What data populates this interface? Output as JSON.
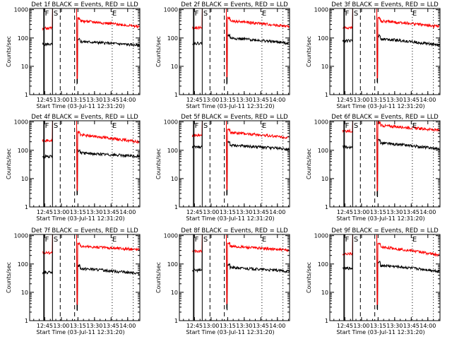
{
  "colors": {
    "events": "#000000",
    "lld": "#ff0000",
    "axes": "#000000",
    "background": "#ffffff"
  },
  "shared": {
    "xlabel": "Start Time (03-Jul-11 12:31:20)",
    "ylabel": "Counts/sec",
    "xticks": [
      "12:45",
      "13:00",
      "13:15",
      "13:30",
      "13:45",
      "14:00"
    ],
    "yticks": [
      "1",
      "10",
      "100",
      "1000"
    ],
    "markers": [
      "F",
      "S",
      "E"
    ]
  },
  "chart_data": [
    {
      "type": "line",
      "title": "Det 1f BLACK = Events, RED = LLD",
      "x_range": [
        "12:31:20",
        "14:11"
      ],
      "y_scale": "log",
      "ylim": [
        1,
        1100
      ],
      "grid": false,
      "series": [
        {
          "name": "Events",
          "color": "#000000",
          "level_before": 60,
          "level_after": 75,
          "level_end": 55
        },
        {
          "name": "LLD",
          "color": "#ff0000",
          "level_before": 220,
          "level_after": 400,
          "level_end": 250
        }
      ]
    },
    {
      "type": "line",
      "title": "Det 2f BLACK = Events, RED = LLD",
      "x_range": [
        "12:31:20",
        "14:11"
      ],
      "y_scale": "log",
      "ylim": [
        1,
        1100
      ],
      "grid": false,
      "series": [
        {
          "name": "Events",
          "color": "#000000",
          "level_before": 65,
          "level_after": 100,
          "level_end": 65
        },
        {
          "name": "LLD",
          "color": "#ff0000",
          "level_before": 230,
          "level_after": 400,
          "level_end": 250
        }
      ]
    },
    {
      "type": "line",
      "title": "Det 3f BLACK = Events, RED = LLD",
      "x_range": [
        "12:31:20",
        "14:11"
      ],
      "y_scale": "log",
      "ylim": [
        1,
        1100
      ],
      "grid": false,
      "series": [
        {
          "name": "Events",
          "color": "#000000",
          "level_before": 80,
          "level_after": 95,
          "level_end": 55
        },
        {
          "name": "LLD",
          "color": "#ff0000",
          "level_before": 230,
          "level_after": 400,
          "level_end": 250
        }
      ]
    },
    {
      "type": "line",
      "title": "Det 4f BLACK = Events, RED = LLD",
      "x_range": [
        "12:31:20",
        "14:11"
      ],
      "y_scale": "log",
      "ylim": [
        1,
        1100
      ],
      "grid": false,
      "series": [
        {
          "name": "Events",
          "color": "#000000",
          "level_before": 60,
          "level_after": 80,
          "level_end": 60
        },
        {
          "name": "LLD",
          "color": "#ff0000",
          "level_before": 220,
          "level_after": 350,
          "level_end": 190
        }
      ]
    },
    {
      "type": "line",
      "title": "Det 5f BLACK = Events, RED = LLD",
      "x_range": [
        "12:31:20",
        "14:11"
      ],
      "y_scale": "log",
      "ylim": [
        1,
        1100
      ],
      "grid": false,
      "series": [
        {
          "name": "Events",
          "color": "#000000",
          "level_before": 130,
          "level_after": 150,
          "level_end": 110
        },
        {
          "name": "LLD",
          "color": "#ff0000",
          "level_before": 330,
          "level_after": 420,
          "level_end": 280
        }
      ]
    },
    {
      "type": "line",
      "title": "Det 6f BLACK = Events, RED = LLD",
      "x_range": [
        "12:31:20",
        "14:11"
      ],
      "y_scale": "log",
      "ylim": [
        1,
        1100
      ],
      "grid": false,
      "series": [
        {
          "name": "Events",
          "color": "#000000",
          "level_before": 130,
          "level_after": 180,
          "level_end": 110
        },
        {
          "name": "LLD",
          "color": "#ff0000",
          "level_before": 480,
          "level_after": 750,
          "level_end": 500
        }
      ]
    },
    {
      "type": "line",
      "title": "Det 7f BLACK = Events, RED = LLD",
      "x_range": [
        "12:31:20",
        "14:11"
      ],
      "y_scale": "log",
      "ylim": [
        1,
        1100
      ],
      "grid": false,
      "series": [
        {
          "name": "Events",
          "color": "#000000",
          "level_before": 50,
          "level_after": 70,
          "level_end": 45
        },
        {
          "name": "LLD",
          "color": "#ff0000",
          "level_before": 250,
          "level_after": 420,
          "level_end": 320
        }
      ]
    },
    {
      "type": "line",
      "title": "Det 8f BLACK = Events, RED = LLD",
      "x_range": [
        "12:31:20",
        "14:11"
      ],
      "y_scale": "log",
      "ylim": [
        1,
        1100
      ],
      "grid": false,
      "series": [
        {
          "name": "Events",
          "color": "#000000",
          "level_before": 60,
          "level_after": 75,
          "level_end": 55
        },
        {
          "name": "LLD",
          "color": "#ff0000",
          "level_before": 280,
          "level_after": 420,
          "level_end": 300
        }
      ]
    },
    {
      "type": "line",
      "title": "Det 9f BLACK = Events, RED = LLD",
      "x_range": [
        "12:31:20",
        "14:11"
      ],
      "y_scale": "log",
      "ylim": [
        1,
        1100
      ],
      "grid": false,
      "series": [
        {
          "name": "Events",
          "color": "#000000",
          "level_before": 70,
          "level_after": 90,
          "level_end": 55
        },
        {
          "name": "LLD",
          "color": "#ff0000",
          "level_before": 230,
          "level_after": 400,
          "level_end": 200
        }
      ]
    }
  ]
}
